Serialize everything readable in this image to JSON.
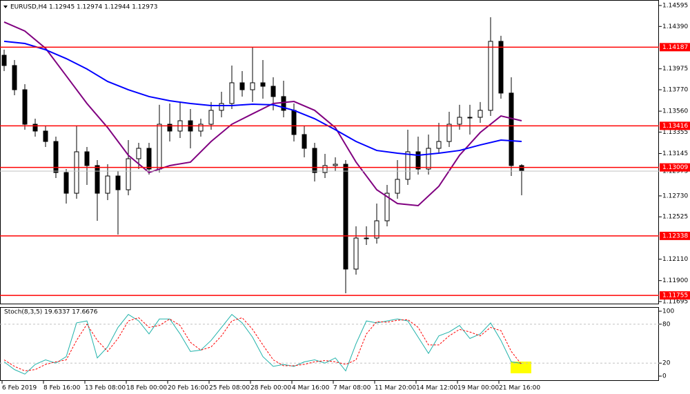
{
  "chart_data": [
    {
      "type": "candlestick",
      "title": "EURUSD,H4  1.12945 1.12974 1.12944 1.12973",
      "x_labels": [
        "6 Feb 2019",
        "8 Feb 16:00",
        "13 Feb 08:00",
        "18 Feb 00:00",
        "20 Feb 16:00",
        "25 Feb 08:00",
        "28 Feb 00:00",
        "4 Mar 16:00",
        "7 Mar 08:00",
        "11 Mar 20:00",
        "14 Mar 12:00",
        "19 Mar 00:00",
        "21 Mar 16:00"
      ],
      "open": [
        1.14108,
        1.14007,
        1.1377,
        1.13432,
        1.13365,
        1.13263,
        1.12959,
        1.12756,
        1.13162,
        1.13027,
        1.12756,
        1.12925,
        1.1279,
        1.13094,
        1.13196,
        1.12993,
        1.13432,
        1.13365,
        1.13466,
        1.13365,
        1.13432,
        1.13568,
        1.13635,
        1.13838,
        1.1377,
        1.13838,
        1.13804,
        1.13703,
        1.13568,
        1.13331,
        1.13196,
        1.12959,
        1.13027,
        1.1304,
        1.12013,
        1.12317,
        1.12317,
        1.12486,
        1.12756,
        1.12892,
        1.13162,
        1.12993,
        1.13196,
        1.13263,
        1.13432,
        1.135,
        1.135,
        1.13568,
        1.14244,
        1.13737,
        1.13027
      ],
      "high": [
        1.14162,
        1.14061,
        1.13824,
        1.13486,
        1.13419,
        1.13311,
        1.12993,
        1.13419,
        1.13209,
        1.13081,
        1.1304,
        1.12973,
        1.13277,
        1.1325,
        1.1325,
        1.13622,
        1.13635,
        1.13649,
        1.13581,
        1.13486,
        1.13649,
        1.1375,
        1.14007,
        1.13953,
        1.14189,
        1.14061,
        1.13892,
        1.13858,
        1.13635,
        1.13419,
        1.1325,
        1.13142,
        1.13108,
        1.13081,
        1.12432,
        1.12432,
        1.12655,
        1.12837,
        1.13081,
        1.13378,
        1.13311,
        1.13331,
        1.13446,
        1.13554,
        1.13622,
        1.13622,
        1.13649,
        1.1448,
        1.14298,
        1.13892,
        1.1304
      ],
      "low": [
        1.13953,
        1.13716,
        1.13378,
        1.13311,
        1.13209,
        1.12905,
        1.12655,
        1.12702,
        1.12837,
        1.12486,
        1.12689,
        1.12351,
        1.12736,
        1.12993,
        1.12939,
        1.12959,
        1.13263,
        1.13297,
        1.13196,
        1.13311,
        1.13378,
        1.135,
        1.13581,
        1.13703,
        1.13649,
        1.13682,
        1.13568,
        1.135,
        1.13263,
        1.13108,
        1.12871,
        1.12905,
        1.12973,
        1.11776,
        1.11959,
        1.12249,
        1.12263,
        1.12432,
        1.12702,
        1.12837,
        1.12939,
        1.12939,
        1.13142,
        1.13209,
        1.13378,
        1.13331,
        1.13446,
        1.13513,
        1.13682,
        1.12925,
        1.12736
      ],
      "close": [
        1.14007,
        1.1377,
        1.13432,
        1.13365,
        1.13263,
        1.12959,
        1.12756,
        1.13162,
        1.13027,
        1.12756,
        1.12925,
        1.1279,
        1.13094,
        1.13196,
        1.12993,
        1.13432,
        1.13365,
        1.13466,
        1.13365,
        1.13432,
        1.13568,
        1.13635,
        1.13838,
        1.1377,
        1.13838,
        1.13804,
        1.13703,
        1.13568,
        1.13331,
        1.13196,
        1.12959,
        1.13027,
        1.1304,
        1.12013,
        1.12317,
        1.12317,
        1.12486,
        1.12756,
        1.12892,
        1.13162,
        1.12993,
        1.13196,
        1.13263,
        1.13432,
        1.135,
        1.135,
        1.13568,
        1.14244,
        1.13737,
        1.13027,
        1.12973
      ],
      "series": [
        {
          "color": "#800080",
          "values": [
            1.14433,
            1.14345,
            1.14176,
            1.13906,
            1.13635,
            1.13399,
            1.13128,
            1.12959,
            1.13027,
            1.13061,
            1.13263,
            1.13432,
            1.13534,
            1.13635,
            1.13655,
            1.13568,
            1.13399,
            1.13061,
            1.1279,
            1.12655,
            1.12635,
            1.12824,
            1.13128,
            1.13351,
            1.13513,
            1.13466
          ]
        },
        {
          "color": "#0000ff",
          "values": [
            1.14244,
            1.14223,
            1.14162,
            1.14075,
            1.13973,
            1.13851,
            1.1377,
            1.13703,
            1.13662,
            1.13635,
            1.13615,
            1.13615,
            1.13628,
            1.13622,
            1.13568,
            1.13486,
            1.13378,
            1.13263,
            1.13175,
            1.13148,
            1.13128,
            1.13148,
            1.13175,
            1.13229,
            1.13277,
            1.13263
          ]
        }
      ],
      "hlines": [
        1.14187,
        1.13416,
        1.13009,
        1.12338,
        1.11755
      ],
      "hline_color": "#ff0000",
      "last": 1.12973,
      "ylim": [
        1.11668,
        1.14649
      ],
      "yticks": [
        1.14595,
        {
          "value": 1.1439,
          "label": "1.14390"
        },
        1.13975,
        {
          "value": 1.1377,
          "label": "1.13770"
        },
        {
          "value": 1.1356,
          "label": "1.13560"
        },
        1.13355,
        1.13145,
        {
          "value": 1.1273,
          "label": "1.12730"
        },
        1.12525,
        {
          "value": 1.1211,
          "label": "1.12110"
        },
        {
          "value": 1.119,
          "label": "1.11900"
        },
        1.11695
      ]
    },
    {
      "type": "line",
      "title": "Stoch(8,3,5) 19.6337 17.6676",
      "ylim": [
        -7.4,
        106.4
      ],
      "yticks": [
        100,
        80,
        20,
        0
      ],
      "levels": [
        80,
        20
      ],
      "series": [
        {
          "color": "#20b2aa",
          "dashed": false,
          "values": [
            22,
            10,
            3,
            18,
            25,
            20,
            30,
            82,
            85,
            28,
            45,
            75,
            95,
            85,
            65,
            88,
            88,
            65,
            38,
            40,
            55,
            75,
            95,
            82,
            60,
            30,
            15,
            18,
            15,
            22,
            25,
            20,
            28,
            8,
            50,
            85,
            82,
            85,
            88,
            85,
            60,
            35,
            62,
            68,
            78,
            58,
            65,
            82,
            55,
            22,
            19.6337
          ]
        },
        {
          "color": "#ff0000",
          "dashed": true,
          "values": [
            25,
            15,
            8,
            10,
            18,
            22,
            25,
            55,
            80,
            55,
            38,
            58,
            85,
            90,
            75,
            78,
            88,
            78,
            52,
            40,
            45,
            62,
            85,
            90,
            72,
            48,
            25,
            16,
            16,
            18,
            22,
            24,
            22,
            18,
            25,
            65,
            84,
            83,
            86,
            87,
            75,
            48,
            48,
            62,
            72,
            68,
            62,
            75,
            70,
            38,
            17.6676
          ]
        }
      ]
    }
  ]
}
